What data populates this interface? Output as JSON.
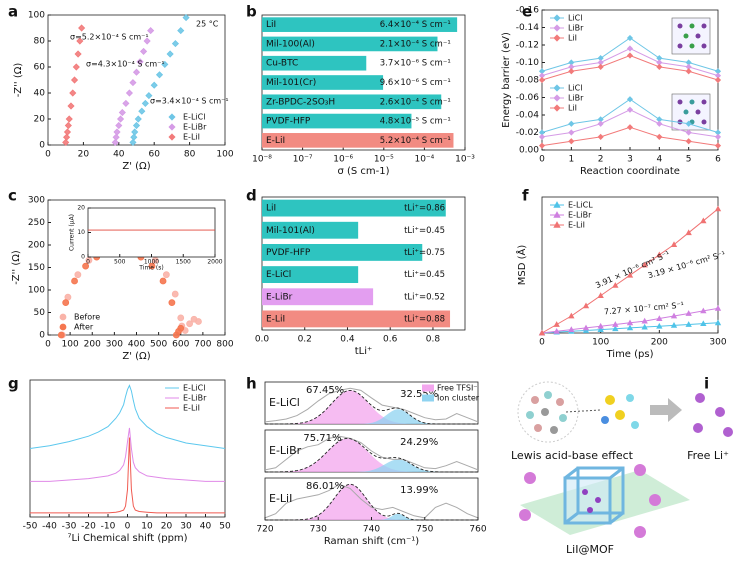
{
  "chart_data": [
    {
      "panel": "a",
      "type": "scatter",
      "xlabel": "Z' (Ω)",
      "ylabel": "-Z'' (Ω)",
      "xlim": [
        0,
        100
      ],
      "ylim": [
        0,
        100
      ],
      "xticks": [
        0,
        20,
        40,
        60,
        80,
        100
      ],
      "yticks": [
        0,
        20,
        40,
        60,
        80,
        100
      ],
      "marker": "diamond",
      "legend": "lower right",
      "series": [
        {
          "name": "E-LiCl",
          "color": "#6ec6e6",
          "x": [
            48,
            48.5,
            49,
            50,
            51,
            53,
            55,
            57,
            60,
            63,
            66,
            69,
            72,
            75,
            78
          ],
          "values": [
            2,
            6,
            10,
            15,
            20,
            26,
            32,
            38,
            46,
            54,
            62,
            70,
            78,
            88,
            98
          ]
        },
        {
          "name": "E-LiBr",
          "color": "#d59be6",
          "x": [
            38,
            38.5,
            39,
            40,
            41,
            42,
            44,
            46,
            48,
            50,
            52,
            54,
            56,
            58
          ],
          "values": [
            2,
            6,
            10,
            15,
            20,
            25,
            32,
            40,
            48,
            56,
            64,
            72,
            80,
            88
          ]
        },
        {
          "name": "E-LiI",
          "color": "#f27a7a",
          "x": [
            10,
            10.5,
            11,
            11.5,
            12,
            13,
            14,
            15,
            16,
            17,
            18,
            19
          ],
          "values": [
            2,
            6,
            10,
            15,
            20,
            30,
            40,
            50,
            60,
            70,
            80,
            90
          ]
        }
      ],
      "annotations": [
        {
          "text": "25 °C",
          "color": "#111111"
        },
        {
          "text": "σ=5.2×10⁻⁴ S cm⁻¹",
          "color": "#f27a7a"
        },
        {
          "text": "σ=4.3×10⁻⁴ S cm⁻¹",
          "color": "#d59be6"
        },
        {
          "text": "σ=3.4×10⁻⁴ S cm⁻¹",
          "color": "#6ec6e6"
        }
      ]
    },
    {
      "panel": "b",
      "type": "hbar",
      "xscale": "log",
      "xlabel": "σ (S cm-1)",
      "xlim": [
        1e-08,
        0.001
      ],
      "xticks": [
        {
          "value": 1e-08,
          "label": "10⁻⁸"
        },
        {
          "value": 1e-07,
          "label": "10⁻⁷"
        },
        {
          "value": 1e-06,
          "label": "10⁻⁶"
        },
        {
          "value": 1e-05,
          "label": "10⁻⁵"
        },
        {
          "value": 0.0001,
          "label": "10⁻⁴"
        },
        {
          "value": 0.001,
          "label": "10⁻³"
        }
      ],
      "categories": [
        "LiI",
        "Mil-100(Al)",
        "Cu-BTC",
        "Mil-101(Cr)",
        "Zr-BPDC-2SO₃H",
        "PVDF-HFP",
        "E-LiI"
      ],
      "values": [
        0.00064,
        0.00021,
        3.7e-06,
        9.6e-06,
        0.00026,
        4.8e-05,
        0.00052
      ],
      "value_labels": [
        "6.4×10⁻⁴ S cm⁻¹",
        "2.1×10⁻⁴ S cm⁻¹",
        "3.7×10⁻⁶ S cm⁻¹",
        "9.6×10⁻⁶ S cm⁻¹",
        "2.6×10⁻⁴ S cm⁻¹",
        "4.8×10⁻⁵ S cm⁻¹",
        "5.2×10⁻⁴ S cm⁻¹"
      ],
      "colors": [
        "#2ec4c0",
        "#2ec4c0",
        "#2ec4c0",
        "#2ec4c0",
        "#2ec4c0",
        "#2ec4c0",
        "#f28b82"
      ]
    },
    {
      "panel": "c",
      "type": "scatter",
      "xlabel": "Z' (Ω)",
      "ylabel": "-Z'' (Ω)",
      "xlim": [
        0,
        800
      ],
      "ylim": [
        0,
        300
      ],
      "xticks": [
        0,
        100,
        200,
        300,
        400,
        500,
        600,
        700,
        800
      ],
      "yticks": [
        0,
        50,
        100,
        150,
        200,
        250,
        300
      ],
      "marker": "circle",
      "legend": "lower left",
      "series": [
        {
          "name": "Before",
          "color": "#f9b3a8",
          "x": [
            65,
            90,
            135,
            185,
            235,
            285,
            335,
            385,
            435,
            485,
            535,
            575,
            600,
            605,
            620,
            640,
            660,
            680
          ],
          "values": [
            0,
            84,
            134,
            166,
            186,
            196,
            200,
            196,
            186,
            166,
            134,
            91,
            38,
            20,
            10,
            25,
            35,
            30
          ]
        },
        {
          "name": "After",
          "color": "#f5764f",
          "x": [
            60,
            80,
            120,
            170,
            220,
            270,
            320,
            370,
            420,
            470,
            520,
            560,
            580,
            590,
            600
          ],
          "values": [
            0,
            72,
            120,
            153,
            173,
            184,
            187,
            184,
            173,
            153,
            120,
            72,
            0,
            8,
            15
          ]
        }
      ],
      "inset": {
        "xlabel": "Time (s)",
        "ylabel": "Current (μA)",
        "xlim": [
          0,
          2000
        ],
        "ylim": [
          0,
          20
        ],
        "xticks": [
          0,
          500,
          1000,
          1500,
          2000
        ],
        "yticks": [
          0,
          10,
          20
        ],
        "x": [
          0,
          2000
        ],
        "values": [
          11,
          11
        ],
        "color": "#e0443a"
      }
    },
    {
      "panel": "d",
      "type": "hbar",
      "xlabel": "tLi⁺",
      "xlim": [
        0,
        0.95
      ],
      "xticks": [
        {
          "value": 0,
          "label": "0.0"
        },
        0.2,
        0.4,
        0.6,
        0.8
      ],
      "categories": [
        "LiI",
        "Mil-101(Al)",
        "PVDF-HFP",
        "E-LiCl",
        "E-LiBr",
        "E-LiI"
      ],
      "values": [
        0.86,
        0.45,
        0.75,
        0.45,
        0.52,
        0.88
      ],
      "value_labels": [
        "tLi⁺=0.86",
        "tLi⁺=0.45",
        "tLi⁺=0.75",
        "tLi⁺=0.45",
        "tLi⁺=0.52",
        "tLi⁺=0.88"
      ],
      "colors": [
        "#2ec4c0",
        "#2ec4c0",
        "#2ec4c0",
        "#2ec4c0",
        "#e39ef0",
        "#f28b82"
      ]
    },
    {
      "panel": "e",
      "type": "line",
      "xlabel": "Reaction coordinate",
      "ylabel": "Energy barrier (eV)",
      "xlim": [
        0,
        6
      ],
      "ylim": [
        0,
        -0.16
      ],
      "xticks": [
        0,
        1,
        2,
        3,
        4,
        5,
        6
      ],
      "yticks": [
        -0.16,
        -0.14,
        -0.12,
        {
          "value": -0.1,
          "label": "-0.10"
        },
        -0.08,
        -0.06,
        -0.04,
        -0.02,
        {
          "value": 0,
          "label": "0.00"
        }
      ],
      "marker": "diamond",
      "legend": "upper left",
      "x": [
        0,
        1,
        2,
        3,
        4,
        5,
        6
      ],
      "series": [
        {
          "name": "LiCl",
          "color": "#6ec6e6",
          "values": [
            -0.09,
            -0.1,
            -0.105,
            -0.128,
            -0.105,
            -0.1,
            -0.09
          ]
        },
        {
          "name": "LiBr",
          "color": "#d59be6",
          "values": [
            -0.085,
            -0.095,
            -0.1,
            -0.116,
            -0.1,
            -0.095,
            -0.085
          ]
        },
        {
          "name": "LiI",
          "color": "#f27a7a",
          "values": [
            -0.08,
            -0.09,
            -0.095,
            -0.108,
            -0.095,
            -0.09,
            -0.08
          ]
        },
        {
          "name": "LiCl",
          "color": "#6ec6e6",
          "values": [
            -0.02,
            -0.03,
            -0.035,
            -0.058,
            -0.035,
            -0.03,
            -0.02
          ]
        },
        {
          "name": "LiBr",
          "color": "#d59be6",
          "values": [
            -0.015,
            -0.02,
            -0.03,
            -0.046,
            -0.03,
            -0.02,
            -0.015
          ]
        },
        {
          "name": "LiI",
          "color": "#f27a7a",
          "values": [
            -0.005,
            -0.01,
            -0.015,
            -0.026,
            -0.015,
            -0.01,
            -0.005
          ]
        }
      ]
    },
    {
      "panel": "f",
      "type": "line",
      "xlabel": "Time (ps)",
      "ylabel": "MSD (Å)",
      "xlim": [
        0,
        300
      ],
      "ylim": [
        0,
        8
      ],
      "xticks": [
        0,
        100,
        200,
        300
      ],
      "marker": "triangle",
      "legend": "upper left",
      "x": [
        0,
        25,
        50,
        75,
        100,
        125,
        150,
        175,
        200,
        225,
        250,
        275,
        300
      ],
      "series": [
        {
          "name": "E-LiCL",
          "color": "#4fc3e8",
          "values": [
            0,
            0.05,
            0.1,
            0.15,
            0.2,
            0.25,
            0.3,
            0.35,
            0.4,
            0.45,
            0.5,
            0.55,
            0.6
          ]
        },
        {
          "name": "E-LiBr",
          "color": "#cf7fe0",
          "values": [
            0,
            0.1,
            0.2,
            0.3,
            0.4,
            0.5,
            0.6,
            0.7,
            0.85,
            1.0,
            1.15,
            1.3,
            1.45
          ]
        },
        {
          "name": "E-LiI",
          "color": "#f07373",
          "values": [
            0,
            0.5,
            1.0,
            1.6,
            2.2,
            2.8,
            3.4,
            4.0,
            4.6,
            5.2,
            5.9,
            6.6,
            7.3
          ]
        }
      ],
      "annotations": [
        {
          "text": "3.91 × 10⁻⁶ cm² S⁻¹",
          "color": "#f07373"
        },
        {
          "text": "3.19 × 10⁻⁶ cm² S⁻¹",
          "color": "#4fc3e8"
        },
        {
          "text": "7.27 × 10⁻⁷ cm² S⁻¹",
          "color": "#cf7fe0"
        }
      ]
    },
    {
      "panel": "g",
      "type": "line",
      "xlabel": "⁷Li Chemical shift (ppm)",
      "xlim": [
        -50,
        50
      ],
      "ylim": [
        0,
        10
      ],
      "xticks": [
        -50,
        -40,
        -30,
        -20,
        -10,
        0,
        10,
        20,
        30,
        40,
        50
      ],
      "legend": "upper right",
      "x": [
        -50,
        -40,
        -30,
        -20,
        -15,
        -10,
        -6,
        -4,
        -2,
        -1,
        0,
        1,
        2,
        3,
        4,
        6,
        10,
        15,
        20,
        30,
        40,
        50
      ],
      "series": [
        {
          "name": "E-LiCl",
          "color": "#5cc8ee",
          "values": [
            5.0,
            5.2,
            5.5,
            5.9,
            6.2,
            6.6,
            7.2,
            7.6,
            8.2,
            8.8,
            9.3,
            9.6,
            9.2,
            8.5,
            7.9,
            7.2,
            6.6,
            6.1,
            5.8,
            5.4,
            5.2,
            5.0
          ]
        },
        {
          "name": "E-LiBr",
          "color": "#e08ae8",
          "values": [
            2.6,
            2.6,
            2.7,
            2.8,
            2.9,
            3.0,
            3.2,
            3.4,
            3.8,
            4.4,
            5.5,
            6.5,
            5.0,
            4.0,
            3.6,
            3.3,
            3.0,
            2.9,
            2.8,
            2.7,
            2.6,
            2.6
          ]
        },
        {
          "name": "E-LiI",
          "color": "#f05a50",
          "values": [
            0.3,
            0.3,
            0.3,
            0.3,
            0.3,
            0.3,
            0.35,
            0.4,
            0.5,
            0.8,
            2.0,
            5.8,
            2.0,
            0.8,
            0.5,
            0.4,
            0.35,
            0.3,
            0.3,
            0.3,
            0.3,
            0.3
          ]
        }
      ]
    },
    {
      "panel": "h",
      "type": "raman",
      "xlabel": "Raman shift (cm⁻¹)",
      "xlim": [
        720,
        760
      ],
      "ylim": [
        0,
        1
      ],
      "xticks": [
        720,
        730,
        740,
        750,
        760
      ],
      "legend": "upper right",
      "x": [
        720,
        722,
        724,
        726,
        728,
        730,
        732,
        734,
        736,
        738,
        740,
        742,
        744,
        746,
        748,
        750,
        752,
        754,
        756,
        758,
        760
      ],
      "series": [
        {
          "name": "Free TFSI⁻",
          "color": "#f3a6ee"
        },
        {
          "name": "Ion cluster",
          "color": "#8fd3f0"
        }
      ],
      "panels": [
        {
          "name": "E-LiCl",
          "color": "#6ec6e6",
          "raw": [
            0.05,
            0.08,
            0.12,
            0.2,
            0.35,
            0.55,
            0.72,
            0.8,
            0.85,
            0.8,
            0.62,
            0.45,
            0.4,
            0.35,
            0.25,
            0.15,
            0.1,
            0.12,
            0.25,
            0.15,
            0.05
          ],
          "centers": [
            736,
            745
          ],
          "heights": [
            0.8,
            0.35
          ],
          "widths": [
            3.5,
            2.2
          ],
          "shares": [
            "67.45%",
            "32.55%"
          ]
        },
        {
          "name": "E-LiBr",
          "color": "#e08ae8",
          "raw": [
            0.05,
            0.1,
            0.3,
            0.5,
            0.6,
            0.65,
            0.8,
            0.85,
            0.8,
            0.7,
            0.5,
            0.35,
            0.3,
            0.3,
            0.2,
            0.1,
            0.08,
            0.15,
            0.25,
            0.15,
            0.05
          ],
          "centers": [
            735.5,
            745
          ],
          "heights": [
            0.8,
            0.3
          ],
          "widths": [
            3.8,
            2.5
          ],
          "shares": [
            "75.71%",
            "24.29%"
          ]
        },
        {
          "name": "E-LiI",
          "color": "#f27a7a",
          "raw": [
            0.05,
            0.15,
            0.4,
            0.5,
            0.55,
            0.6,
            0.7,
            0.85,
            0.75,
            0.5,
            0.3,
            0.25,
            0.3,
            0.2,
            0.1,
            0.05,
            0.3,
            0.4,
            0.3,
            0.15,
            0.05
          ],
          "centers": [
            736,
            745
          ],
          "heights": [
            0.85,
            0.15
          ],
          "widths": [
            3,
            1.2
          ],
          "shares": [
            "86.01%",
            "13.99%"
          ]
        }
      ]
    },
    {
      "panel": "i",
      "type": "diagram",
      "labels": [
        "Lewis acid-base effect",
        "Free Li⁺",
        "LiI@MOF"
      ]
    }
  ]
}
